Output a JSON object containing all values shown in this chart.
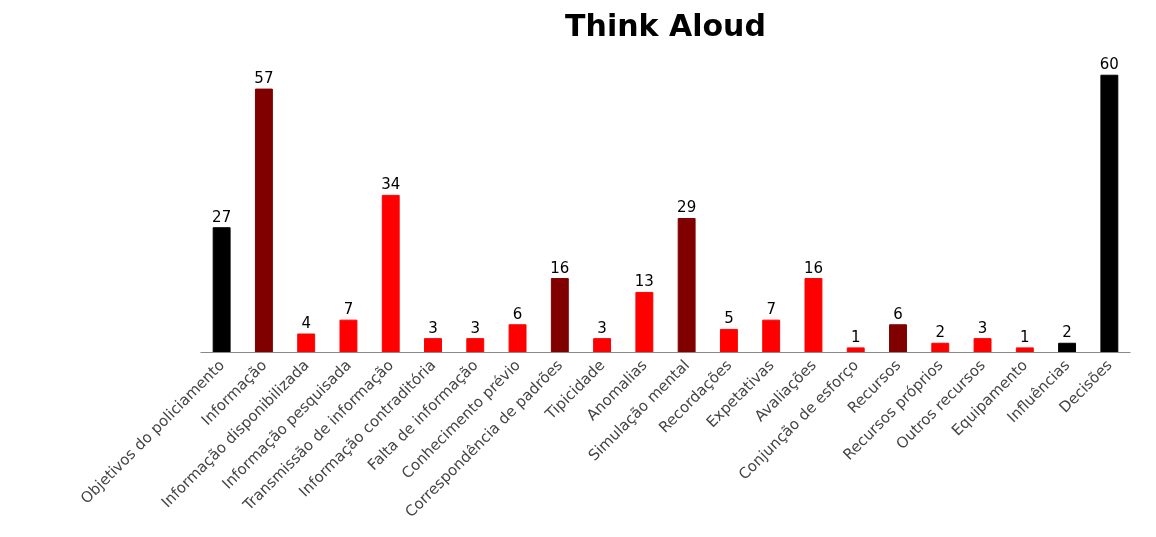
{
  "chart_data": {
    "type": "bar",
    "title": "Think Aloud",
    "categories": [
      "Objetivos do policiamento",
      "Informação",
      "Informação disponibilizada",
      "Informação pesquisada",
      "Transmissão de informação",
      "Informação contraditória",
      "Falta de informação",
      "Conhecimento prévio",
      "Correspondência de padrões",
      "Tipicidade",
      "Anomalias",
      "Simulação mental",
      "Recordações",
      "Expetativas",
      "Avaliações",
      "Conjunção de esforço",
      "Recursos",
      "Recursos próprios",
      "Outros recursos",
      "Equipamento",
      "Influências",
      "Decisões"
    ],
    "values": [
      27,
      57,
      4,
      7,
      34,
      3,
      3,
      6,
      16,
      3,
      13,
      29,
      5,
      7,
      16,
      1,
      6,
      2,
      3,
      1,
      2,
      60
    ],
    "colors": [
      "#000000",
      "#800000",
      "#ff0000",
      "#ff0000",
      "#ff0000",
      "#ff0000",
      "#ff0000",
      "#ff0000",
      "#800000",
      "#ff0000",
      "#ff0000",
      "#800000",
      "#ff0000",
      "#ff0000",
      "#ff0000",
      "#ff0000",
      "#800000",
      "#ff0000",
      "#ff0000",
      "#ff0000",
      "#000000",
      "#000000"
    ],
    "data_labels": true,
    "grid": false
  }
}
